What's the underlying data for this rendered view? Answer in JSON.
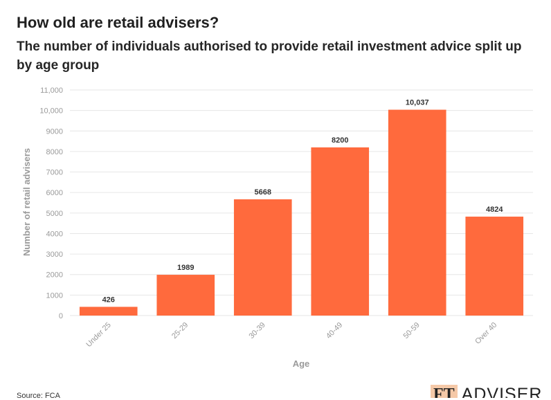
{
  "header": {
    "title": "How old are retail advisers?",
    "subtitle": "The number of individuals authorised to provide retail investment advice split up by age group"
  },
  "footer": {
    "source": "Source: FCA",
    "logo_ft": "FT",
    "logo_text": "ADVISER"
  },
  "colors": {
    "bar": "#ff6a3d",
    "grid": "#e6e6e6",
    "axis_text": "#9a9a9a",
    "label_text": "#333333"
  },
  "chart_data": {
    "type": "bar",
    "categories": [
      "Under 25",
      "25-29",
      "30-39",
      "40-49",
      "50-59",
      "Over 40"
    ],
    "values": [
      426,
      1989,
      5668,
      8200,
      10037,
      4824
    ],
    "value_labels": [
      "426",
      "1989",
      "5668",
      "8200",
      "10,037",
      "4824"
    ],
    "xlabel": "Age",
    "ylabel": "Number of retail advisers",
    "ylim": [
      0,
      11000
    ],
    "yticks": [
      0,
      1000,
      2000,
      3000,
      4000,
      5000,
      6000,
      7000,
      8000,
      9000,
      10000,
      11000
    ],
    "ytick_labels": [
      "0",
      "1000",
      "2000",
      "3000",
      "4000",
      "5000",
      "6000",
      "7000",
      "8000",
      "9000",
      "10,000",
      "11,000"
    ],
    "grid": true,
    "legend": "none"
  }
}
